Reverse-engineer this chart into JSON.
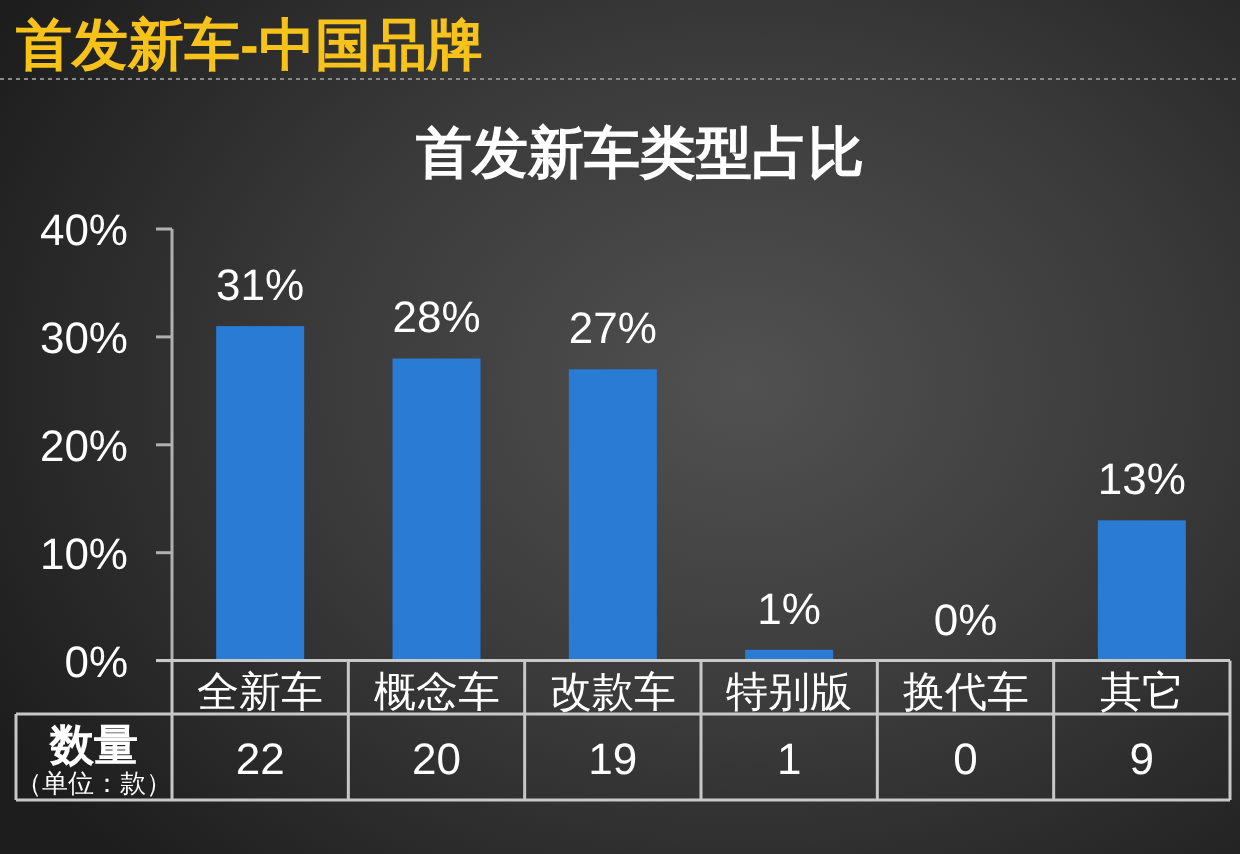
{
  "chart_data": {
    "type": "bar",
    "title": "首发新车-中国品牌",
    "subtitle": "首发新车类型占比",
    "categories": [
      "全新车",
      "概念车",
      "改款车",
      "特别版",
      "换代车",
      "其它"
    ],
    "values": [
      31,
      28,
      27,
      1,
      0,
      13
    ],
    "color": "#2a7bd4",
    "ylim": [
      0,
      40
    ],
    "yticks": [
      {
        "value": 0,
        "label": "0%"
      },
      {
        "value": 10,
        "label": "10%"
      },
      {
        "value": 20,
        "label": "20%"
      },
      {
        "value": 30,
        "label": "30%"
      },
      {
        "value": 40,
        "label": "40%"
      }
    ],
    "value_labels": [
      "31%",
      "28%",
      "27%",
      "1%",
      "0%",
      "13%"
    ],
    "annotations": [
      "数量",
      "（单位：款）",
      "22",
      "20",
      "19",
      "1",
      "0",
      "9"
    ]
  }
}
